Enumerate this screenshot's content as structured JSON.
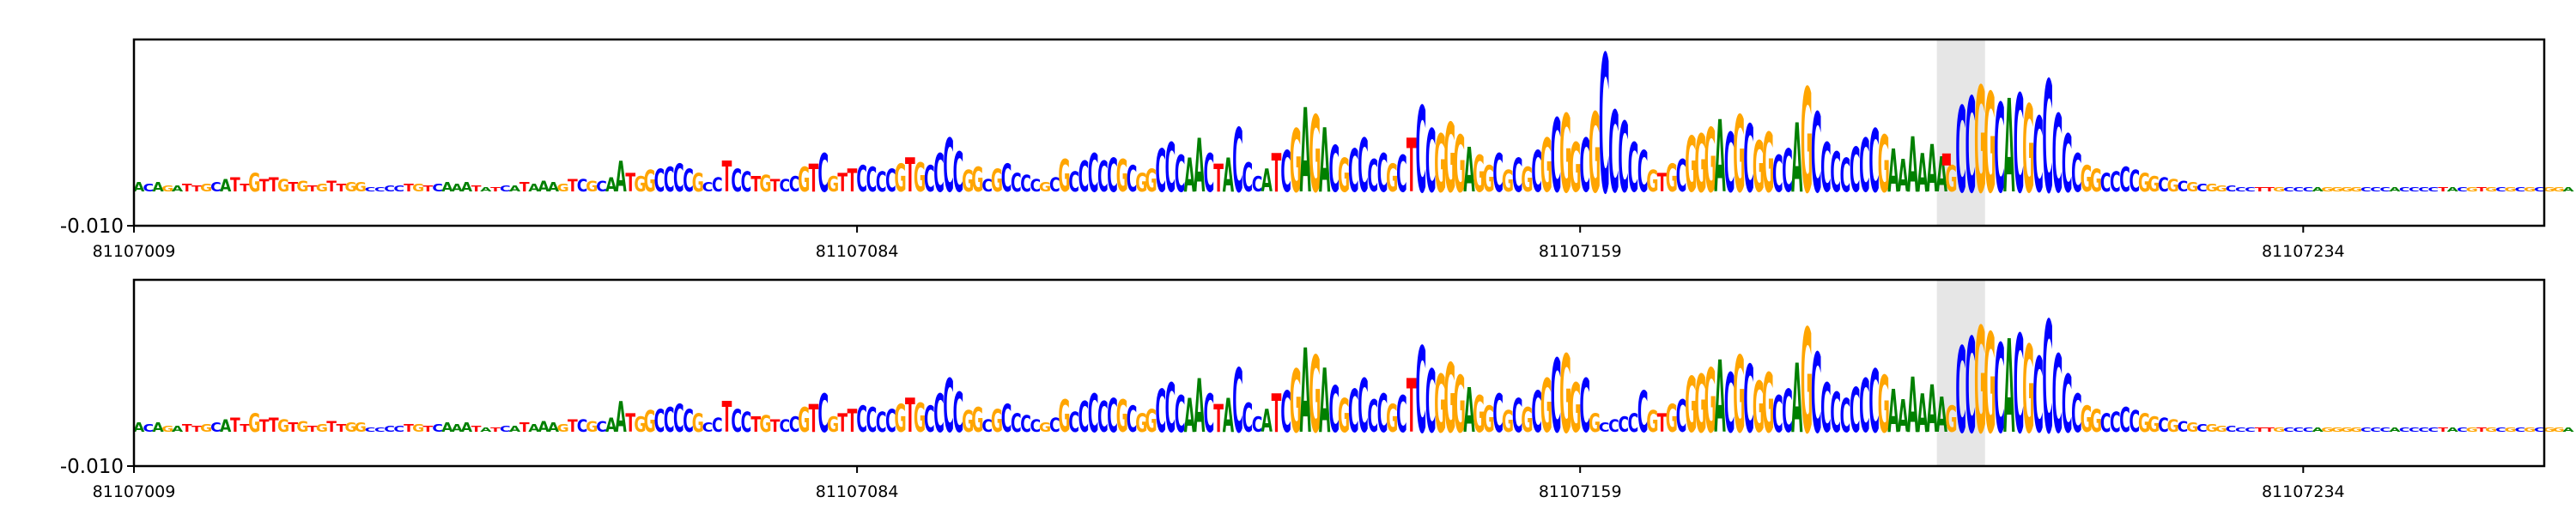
{
  "chart_data": [
    {
      "type": "sequence-logo",
      "title": "",
      "xlabel": "",
      "ylabel": "",
      "y_tick_label": "-0.010",
      "x_ticks": [
        "81107009",
        "81107084",
        "81107159",
        "81107234"
      ],
      "highlight_label": "",
      "highlight_range": [
        81107196,
        81107201
      ],
      "marker": {
        "position": 81107197,
        "color": "#ff0000"
      },
      "sequence": "ACAGATTGCATTGTTGTGTGTTGGCCCCTGTCAAATATCATAAAGTCGCAATGGCCCCGCCTCCTGTCCGTCGTTCCCCGTGCCCCGGCGCCCCGCGCCCCCGCGGCCCAACTACCCATCGAGACGCCCCGCTCCGGGAGGCGCGCGCGGCGCCCCCGTGCGGGACGCGGCCAGCCCCCCCGAAAAAAGCCGGCACGCCCCCGGCCCCGGCGCGCGGCCCTTGCCCAGGGGCCCACCCCTACGTGCGCGCGGAAGCGGCGTTATTATAT",
      "heights": [
        0.6,
        0.5,
        0.6,
        0.4,
        0.4,
        0.5,
        0.4,
        0.5,
        0.6,
        0.8,
        0.9,
        0.5,
        1.2,
        0.8,
        0.9,
        0.8,
        0.6,
        0.7,
        0.4,
        0.5,
        0.7,
        0.5,
        0.6,
        0.6,
        0.3,
        0.3,
        0.4,
        0.4,
        0.5,
        0.5,
        0.4,
        0.5,
        0.6,
        0.5,
        0.6,
        0.4,
        0.3,
        0.3,
        0.4,
        0.4,
        0.6,
        0.5,
        0.7,
        0.6,
        0.5,
        0.8,
        0.8,
        0.7,
        0.7,
        0.9,
        2.0,
        1.2,
        1.0,
        1.4,
        1.5,
        1.6,
        1.8,
        1.5,
        1.2,
        0.6,
        0.9,
        2.0,
        1.5,
        1.3,
        1.0,
        1.1,
        0.8,
        0.8,
        1.0,
        1.6,
        1.8,
        2.5,
        1.0,
        1.2,
        1.5,
        1.7,
        1.6,
        1.3,
        1.5,
        1.8,
        2.2,
        1.9,
        1.7,
        2.5,
        3.5,
        2.6,
        1.4,
        1.6,
        0.8,
        1.5,
        1.8,
        1.2,
        1.1,
        0.8,
        0.6,
        0.9,
        2.1,
        1.3,
        2.0,
        2.5,
        2.0,
        2.2,
        2.1,
        1.7,
        1.2,
        1.5,
        2.8,
        3.2,
        2.4,
        2.2,
        3.5,
        2.5,
        1.8,
        2.2,
        4.2,
        1.9,
        1.0,
        1.5,
        2.5,
        2.7,
        4.1,
        5.5,
        5.0,
        4.2,
        3.0,
        2.2,
        2.8,
        3.5,
        2.1,
        2.5,
        1.8,
        2.4,
        3.5,
        5.6,
        4.1,
        3.8,
        4.5,
        3.7,
        2.9,
        2.4,
        1.7,
        2.5,
        1.4,
        2.2,
        1.6,
        2.7,
        3.5,
        4.8,
        5.1,
        3.2,
        3.5,
        5.2,
        9.0,
        5.3,
        4.6,
        3.2,
        2.7,
        1.4,
        1.2,
        1.8,
        2.1,
        3.6,
        3.8,
        4.2,
        4.7,
        3.9,
        5.0,
        4.4,
        3.3,
        3.9,
        2.4,
        2.8,
        4.5,
        6.8,
        5.2,
        3.2,
        2.6,
        2.2,
        2.9,
        3.5,
        4.1,
        3.7,
        2.8,
        2.1,
        3.6,
        2.5,
        3.1,
        2.3,
        1.7,
        5.6,
        6.2,
        6.9,
        6.5,
        5.8,
        6.1,
        6.4,
        5.7,
        4.9,
        7.3,
        5.1,
        3.8,
        2.5,
        1.7,
        1.5,
        1.2,
        1.3,
        1.6,
        1.4,
        1.2,
        1.0,
        0.9,
        0.8,
        0.7,
        0.6,
        0.5,
        0.5,
        0.4,
        0.4,
        0.3,
        0.3,
        0.3,
        0.3,
        0.3,
        0.3,
        0.3,
        0.3,
        0.3,
        0.3,
        0.3,
        0.3,
        0.3,
        0.3,
        0.3,
        0.3,
        0.3,
        0.3,
        0.3,
        0.3,
        0.3,
        0.3,
        0.3,
        0.3,
        0.3,
        0.3,
        0.3,
        0.3,
        0.3,
        0.3,
        0.3,
        0.3,
        0.3,
        0.3,
        0.3
      ],
      "x_start": 81107009,
      "x_end": 81107259,
      "grid": false
    },
    {
      "type": "sequence-logo",
      "title": "",
      "xlabel": "",
      "ylabel": "",
      "y_tick_label": "-0.010",
      "x_ticks": [
        "81107009",
        "81107084",
        "81107159",
        "81107234"
      ],
      "highlight_label": "",
      "highlight_range": [
        81107196,
        81107201
      ],
      "marker": null,
      "sequence": "ACAGATTGCATTGTTGTGTGTTGGCCCCTGTCAAATATCATAAAGTCGCAATGGCCCCGCCTCCTGTCCGTCGTTCCCCGTGCCCCGGCGCCCCGCGCCCCCGCGGCCCAACTACCCATCGAGACGCCCCGCTCCGGGAGGCGCGCGCGGCGCCCCCGTGCGGGACGCGGCCAGCCCCCCCGAAAAAAGCCGGCACGCCCCCGGCCCCGGCGCGCGGCCCTTGCCCAGGGGCCCACCCCTACGTGCGCGCGGAAGCGGCGTTATTATAT",
      "heights": [
        0.6,
        0.5,
        0.6,
        0.4,
        0.4,
        0.5,
        0.4,
        0.5,
        0.6,
        0.8,
        0.9,
        0.5,
        1.2,
        0.8,
        0.9,
        0.8,
        0.6,
        0.7,
        0.4,
        0.5,
        0.7,
        0.5,
        0.6,
        0.6,
        0.3,
        0.3,
        0.4,
        0.4,
        0.5,
        0.5,
        0.4,
        0.5,
        0.6,
        0.5,
        0.6,
        0.4,
        0.3,
        0.3,
        0.4,
        0.4,
        0.6,
        0.5,
        0.7,
        0.6,
        0.5,
        0.8,
        0.8,
        0.7,
        0.7,
        0.9,
        2.0,
        1.2,
        1.0,
        1.4,
        1.5,
        1.6,
        1.8,
        1.5,
        1.2,
        0.6,
        0.9,
        2.0,
        1.5,
        1.3,
        1.0,
        1.1,
        0.8,
        0.8,
        1.0,
        1.6,
        1.8,
        2.5,
        1.0,
        1.2,
        1.5,
        1.7,
        1.6,
        1.3,
        1.5,
        1.8,
        2.2,
        1.9,
        1.7,
        2.5,
        3.5,
        2.6,
        1.4,
        1.6,
        0.8,
        1.5,
        1.8,
        1.2,
        1.1,
        0.8,
        0.6,
        0.9,
        2.1,
        1.3,
        2.0,
        2.5,
        2.0,
        2.2,
        2.1,
        1.7,
        1.2,
        1.5,
        2.8,
        3.2,
        2.4,
        2.2,
        3.5,
        2.5,
        1.8,
        2.2,
        4.2,
        1.9,
        1.0,
        1.5,
        2.5,
        2.7,
        4.1,
        5.5,
        5.0,
        4.2,
        3.0,
        2.2,
        2.8,
        3.5,
        2.1,
        2.5,
        1.8,
        2.4,
        3.5,
        5.6,
        4.1,
        3.8,
        4.5,
        3.7,
        2.9,
        2.4,
        1.7,
        2.5,
        1.4,
        2.2,
        1.6,
        2.7,
        3.5,
        4.8,
        5.1,
        3.2,
        3.5,
        1.2,
        0.6,
        0.8,
        1.0,
        1.2,
        2.7,
        1.4,
        1.2,
        1.8,
        2.1,
        3.6,
        3.8,
        4.2,
        4.7,
        3.9,
        5.0,
        4.4,
        3.3,
        3.9,
        2.4,
        2.8,
        4.5,
        6.8,
        5.2,
        3.2,
        2.6,
        2.2,
        2.9,
        3.5,
        4.1,
        3.7,
        2.8,
        2.1,
        3.6,
        2.5,
        3.1,
        2.3,
        1.7,
        5.6,
        6.2,
        6.9,
        6.5,
        5.8,
        6.1,
        6.4,
        5.7,
        4.9,
        7.3,
        5.1,
        3.8,
        2.5,
        1.7,
        1.5,
        1.2,
        1.3,
        1.6,
        1.4,
        1.2,
        1.0,
        0.9,
        0.8,
        0.7,
        0.6,
        0.5,
        0.5,
        0.4,
        0.4,
        0.3,
        0.3,
        0.3,
        0.3,
        0.3,
        0.3,
        0.3,
        0.3,
        0.3,
        0.3,
        0.3,
        0.3,
        0.3,
        0.3,
        0.3,
        0.3,
        0.3,
        0.3,
        0.3,
        0.3,
        0.3,
        0.3,
        0.3,
        0.3,
        0.3,
        0.3,
        0.3,
        0.3,
        0.3,
        0.3,
        0.3,
        0.3,
        0.3,
        0.3,
        0.3
      ],
      "x_start": 81107009,
      "x_end": 81107259,
      "grid": false
    }
  ],
  "colors": {
    "A": "#008000",
    "C": "#0000ff",
    "G": "#ffa500",
    "T": "#ff0000",
    "highlight": "#e6e6e6",
    "axis": "#000000"
  }
}
